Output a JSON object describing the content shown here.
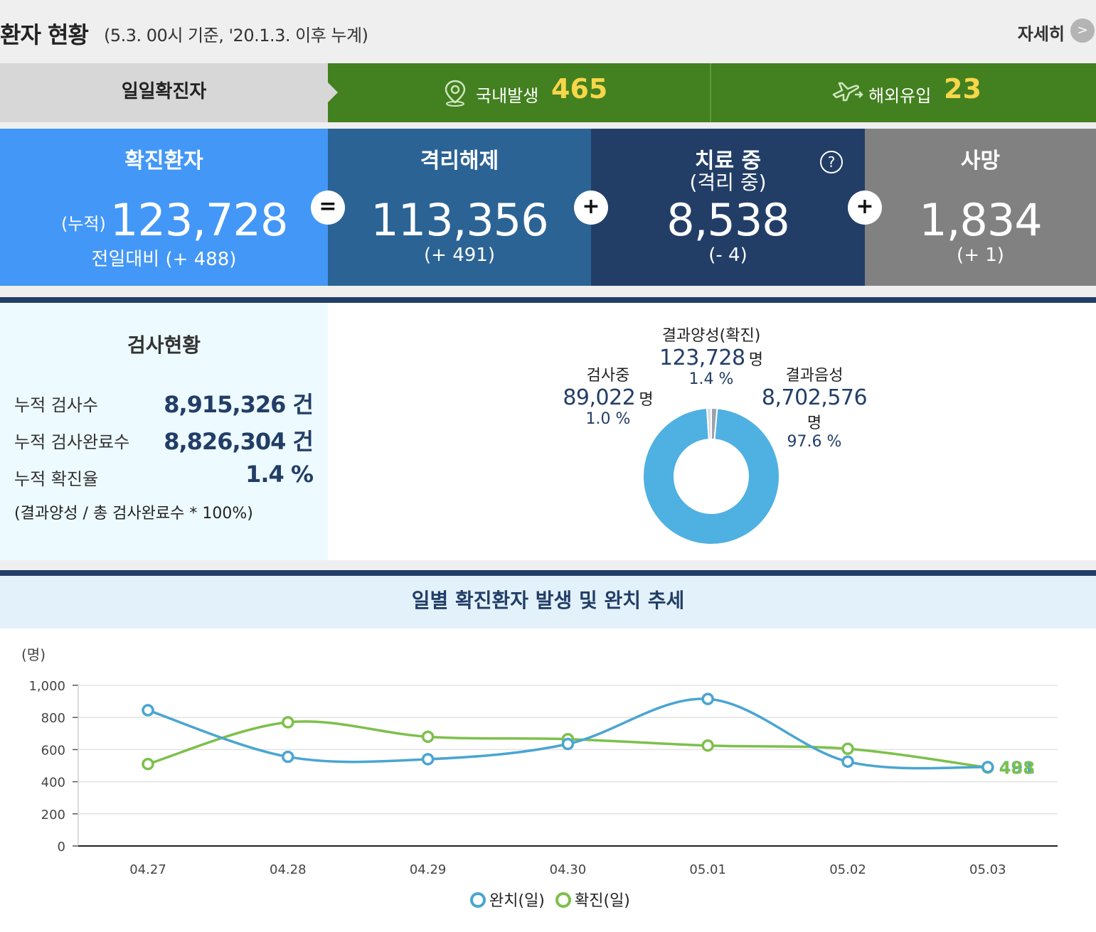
{
  "header": {
    "title": "환자 현황",
    "subtitle": "(5.3. 00시 기준, '20.1.3. 이후 누계)",
    "more_label": "자세히",
    "more_icon_glyph": ">"
  },
  "daily": {
    "label": "일일확진자",
    "domestic": {
      "label": "국내발생",
      "value": "465",
      "icon": "location-pin-icon"
    },
    "overseas": {
      "label": "해외유입",
      "value": "23",
      "icon": "airplane-icon"
    }
  },
  "stats": {
    "confirmed": {
      "title": "확진환자",
      "prefix": "(누적)",
      "value": "123,728",
      "delta": "전일대비 (+ 488)"
    },
    "released": {
      "title": "격리해제",
      "value": "113,356",
      "delta": "(+ 491)"
    },
    "treating": {
      "title": "치료 중",
      "subtitle": "(격리 중)",
      "value": "8,538",
      "delta": "(- 4)",
      "help": "?"
    },
    "deaths": {
      "title": "사망",
      "value": "1,834",
      "delta": "(+ 1)"
    },
    "ops": [
      "=",
      "+",
      "+"
    ]
  },
  "tests": {
    "title": "검사현황",
    "rows": [
      {
        "label": "누적 검사수",
        "value": "8,915,326 건"
      },
      {
        "label": "누적 검사완료수",
        "value": "8,826,304 건"
      },
      {
        "label": "누적 확진율",
        "value": "1.4 %"
      }
    ],
    "note": "(결과양성 / 총 검사완료수 * 100%)",
    "donut": {
      "positive": {
        "label": "결과양성(확진)",
        "value": "123,728",
        "unit": "명",
        "pct": "1.4 %",
        "share": 1.4
      },
      "testing": {
        "label": "검사중",
        "value": "89,022",
        "unit": "명",
        "pct": "1.0 %",
        "share": 1.0
      },
      "negative": {
        "label": "결과음성",
        "value": "8,702,576",
        "unit": "명",
        "pct": "97.6 %",
        "share": 97.6
      },
      "colors": {
        "negative": "#4fb0e2",
        "positive": "#9aa3ad",
        "testing": "#d9dde2"
      }
    }
  },
  "trend": {
    "title": "일별 확진환자 발생 및 완치 추세",
    "unit_label": "(명)",
    "colors": {
      "recovered": "#4aa5d2",
      "confirmed": "#7dc04b"
    }
  },
  "chart_data": {
    "type": "line",
    "title": "일별 확진환자 발생 및 완치 추세",
    "ylabel": "(명)",
    "ylim": [
      0,
      1000
    ],
    "yticks": [
      "0",
      "200",
      "400",
      "600",
      "800",
      "1,000"
    ],
    "categories": [
      "04.27",
      "04.28",
      "04.29",
      "04.30",
      "05.01",
      "05.02",
      "05.03"
    ],
    "series": [
      {
        "name": "완치(일)",
        "values": [
          845,
          555,
          540,
          635,
          915,
          525,
          491
        ]
      },
      {
        "name": "확진(일)",
        "values": [
          510,
          770,
          680,
          665,
          625,
          605,
          488
        ]
      }
    ],
    "last_labels": [
      "491",
      "488"
    ],
    "grid": true,
    "legend": "bottom"
  }
}
